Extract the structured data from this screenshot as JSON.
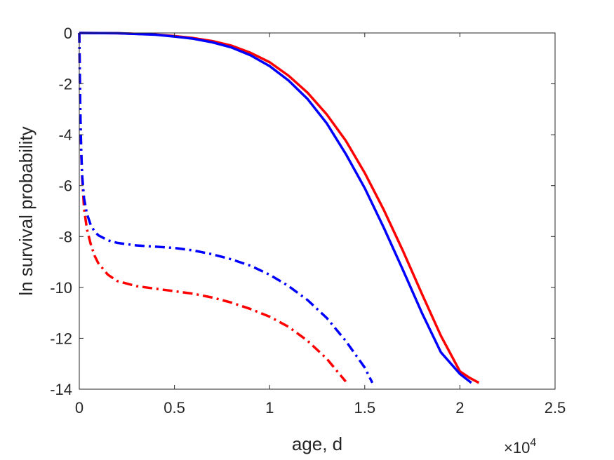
{
  "chart_data": {
    "type": "line",
    "title": "",
    "xlabel": "age, d",
    "ylabel": "ln survival probability",
    "x_multiplier": "×10",
    "x_multiplier_exponent": "4",
    "xlim": [
      0,
      25000
    ],
    "ylim": [
      -14,
      0
    ],
    "xticks": [
      0,
      5000,
      10000,
      15000,
      20000,
      25000
    ],
    "xtick_labels": [
      "0",
      "0.5",
      "1",
      "1.5",
      "2",
      "2.5"
    ],
    "yticks": [
      0,
      -2,
      -4,
      -6,
      -8,
      -10,
      -12,
      -14
    ],
    "ytick_labels": [
      "0",
      "-2",
      "-4",
      "-6",
      "-8",
      "-10",
      "-12",
      "-14"
    ],
    "grid": false,
    "legend": "none",
    "series": [
      {
        "color": "#ff0000",
        "style": "solid",
        "x": [
          0,
          2000,
          4000,
          5000,
          6000,
          7000,
          8000,
          9000,
          10000,
          11000,
          12000,
          13000,
          14000,
          15000,
          16000,
          17000,
          18000,
          19000,
          20000,
          20500,
          21000
        ],
        "y": [
          0,
          -0.01,
          -0.06,
          -0.12,
          -0.2,
          -0.32,
          -0.5,
          -0.78,
          -1.15,
          -1.68,
          -2.35,
          -3.2,
          -4.23,
          -5.5,
          -6.95,
          -8.55,
          -10.25,
          -11.9,
          -13.3,
          -13.55,
          -13.75
        ]
      },
      {
        "color": "#0000ff",
        "style": "solid",
        "x": [
          0,
          2000,
          4000,
          5000,
          6000,
          7000,
          8000,
          9000,
          10000,
          11000,
          12000,
          13000,
          14000,
          15000,
          16000,
          17000,
          18000,
          19000,
          20000,
          20600
        ],
        "y": [
          0,
          -0.01,
          -0.07,
          -0.14,
          -0.23,
          -0.37,
          -0.57,
          -0.88,
          -1.3,
          -1.87,
          -2.6,
          -3.55,
          -4.75,
          -6.1,
          -7.65,
          -9.3,
          -11.0,
          -12.55,
          -13.4,
          -13.75
        ]
      },
      {
        "color": "#ff0000",
        "style": "dashdot",
        "x": [
          0,
          50,
          100,
          150,
          250,
          400,
          600,
          800,
          1000,
          1500,
          2000,
          3000,
          4000,
          5000,
          6000,
          7000,
          8000,
          9000,
          10000,
          11000,
          12000,
          13000,
          14000
        ],
        "y": [
          0,
          -3.0,
          -4.7,
          -5.7,
          -6.9,
          -7.7,
          -8.3,
          -8.75,
          -9.05,
          -9.5,
          -9.75,
          -9.95,
          -10.05,
          -10.15,
          -10.25,
          -10.4,
          -10.6,
          -10.85,
          -11.15,
          -11.55,
          -12.1,
          -12.8,
          -13.7
        ]
      },
      {
        "color": "#0000ff",
        "style": "dashdot",
        "x": [
          0,
          50,
          100,
          150,
          250,
          400,
          600,
          800,
          1000,
          1500,
          2000,
          3000,
          4000,
          5000,
          6000,
          7000,
          8000,
          9000,
          10000,
          11000,
          12000,
          13000,
          14000,
          15000,
          15400
        ],
        "y": [
          0,
          -3.0,
          -4.6,
          -5.6,
          -6.5,
          -7.1,
          -7.55,
          -7.8,
          -7.95,
          -8.15,
          -8.25,
          -8.35,
          -8.4,
          -8.45,
          -8.55,
          -8.7,
          -8.9,
          -9.15,
          -9.5,
          -9.95,
          -10.5,
          -11.2,
          -12.1,
          -13.15,
          -13.75
        ]
      }
    ]
  }
}
